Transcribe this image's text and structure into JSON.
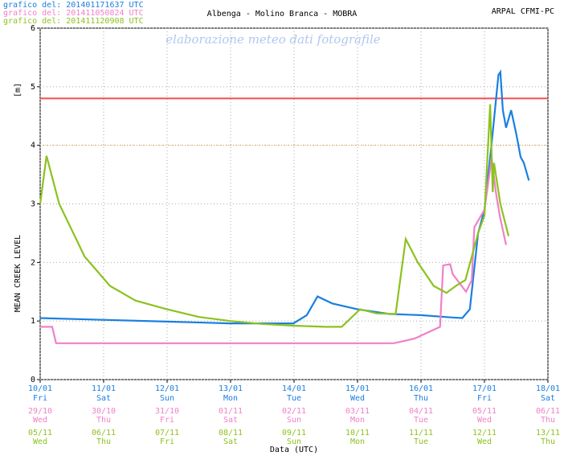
{
  "chart_data": {
    "type": "line",
    "title": "Albenga - Molino Branca - MOBRA",
    "source": "ARPAL CFMI-PC",
    "watermark": "elaborazione meteo dati fotografile",
    "y_label": "MEAN CREEK LEVEL",
    "y_unit": "[m]",
    "x_label": "Data (UTC)",
    "xlim": [
      0,
      8
    ],
    "ylim": [
      0,
      6
    ],
    "xticks": [
      0,
      1,
      2,
      3,
      4,
      5,
      6,
      7,
      8
    ],
    "yticks": [
      0,
      1,
      2,
      3,
      4,
      5,
      6
    ],
    "grid": true,
    "reference_lines": [
      {
        "value": 4.8,
        "color": "#f05050",
        "style": "solid"
      },
      {
        "value": 4,
        "color": "#d8a040",
        "style": "dotted"
      }
    ],
    "series": [
      {
        "name": "grafico del: 201401171637 UTC",
        "color": "#1a7fe0",
        "tick_dates": [
          "10/01",
          "11/01",
          "12/01",
          "13/01",
          "14/01",
          "15/01",
          "16/01",
          "17/01",
          "18/01"
        ],
        "tick_days": [
          "Fri",
          "Sat",
          "Sun",
          "Mon",
          "Tue",
          "Wed",
          "Thu",
          "Fri",
          "Sat"
        ],
        "x": [
          0,
          1,
          2,
          3,
          3.99,
          4.2,
          4.37,
          4.6,
          5,
          5.5,
          6,
          6.5,
          6.65,
          6.77,
          6.9,
          7.0,
          7.11,
          7.22,
          7.25,
          7.29,
          7.34,
          7.42,
          7.5,
          7.57,
          7.62,
          7.7
        ],
        "values": [
          1.05,
          1.02,
          0.99,
          0.96,
          0.96,
          1.1,
          1.42,
          1.3,
          1.2,
          1.12,
          1.1,
          1.06,
          1.05,
          1.2,
          2.5,
          2.9,
          4.0,
          5.2,
          5.25,
          4.6,
          4.3,
          4.6,
          4.2,
          3.8,
          3.7,
          3.4
        ]
      },
      {
        "name": "grafico del: 201411050824 UTC",
        "color": "#f080c8",
        "tick_dates": [
          "29/10",
          "30/10",
          "31/10",
          "01/11",
          "02/11",
          "03/11",
          "04/11",
          "05/11",
          "06/11"
        ],
        "tick_days": [
          "Wed",
          "Thu",
          "Fri",
          "Sat",
          "Sun",
          "Mon",
          "Tue",
          "Wed",
          "Thu"
        ],
        "x": [
          0,
          0.19,
          0.25,
          1,
          2,
          3,
          4,
          5,
          5.57,
          5.9,
          6.3,
          6.35,
          6.46,
          6.5,
          6.71,
          6.8,
          6.84,
          7.0,
          7.09,
          7.11,
          7.18,
          7.24,
          7.34
        ],
        "values": [
          0.9,
          0.9,
          0.62,
          0.62,
          0.62,
          0.62,
          0.62,
          0.62,
          0.62,
          0.7,
          0.9,
          1.95,
          1.97,
          1.8,
          1.5,
          1.7,
          2.6,
          2.9,
          3.6,
          3.8,
          3.2,
          2.8,
          2.3
        ]
      },
      {
        "name": "grafico del: 201411120908 UTC",
        "color": "#8cc21e",
        "tick_dates": [
          "05/11",
          "06/11",
          "07/11",
          "08/11",
          "09/11",
          "10/11",
          "11/11",
          "12/11",
          "13/11"
        ],
        "tick_days": [
          "Wed",
          "Thu",
          "Fri",
          "Sat",
          "Sun",
          "Mon",
          "Tue",
          "Wed",
          "Thu"
        ],
        "x": [
          0,
          0.1,
          0.3,
          0.7,
          1.1,
          1.5,
          2,
          2.5,
          3,
          3.5,
          4,
          4.5,
          4.75,
          5.04,
          5.3,
          5.6,
          5.76,
          5.95,
          6.2,
          6.4,
          6.55,
          6.7,
          6.9,
          7.0,
          7.09,
          7.13,
          7.15,
          7.25,
          7.38
        ],
        "values": [
          3.0,
          3.82,
          3.0,
          2.1,
          1.6,
          1.35,
          1.2,
          1.07,
          1.0,
          0.95,
          0.92,
          0.9,
          0.9,
          1.2,
          1.13,
          1.12,
          2.4,
          2.0,
          1.6,
          1.48,
          1.6,
          1.7,
          2.5,
          2.8,
          4.7,
          3.2,
          3.7,
          3.0,
          2.45
        ]
      }
    ]
  }
}
